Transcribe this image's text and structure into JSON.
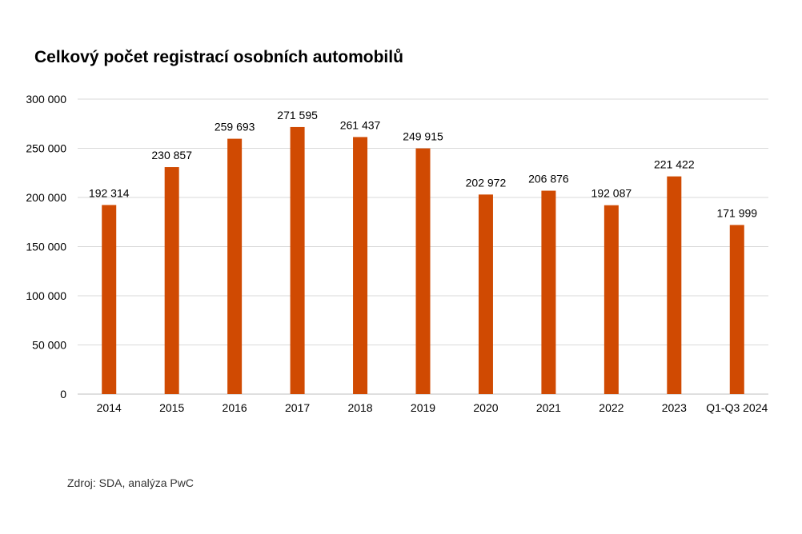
{
  "title": "Celkový počet registrací osobních automobilů",
  "source": "Zdroj: SDA, analýza PwC",
  "chart_data": {
    "type": "bar",
    "title": "Celkový počet registrací osobních automobilů",
    "categories": [
      "2014",
      "2015",
      "2016",
      "2017",
      "2018",
      "2019",
      "2020",
      "2021",
      "2022",
      "2023",
      "Q1-Q3 2024"
    ],
    "values": [
      192314,
      230857,
      259693,
      271595,
      261437,
      249915,
      202972,
      206876,
      192087,
      221422,
      171999
    ],
    "data_labels": [
      "192 314",
      "230 857",
      "259 693",
      "271 595",
      "261 437",
      "249 915",
      "202 972",
      "206 876",
      "192 087",
      "221 422",
      "171 999"
    ],
    "y_ticks": [
      0,
      50000,
      100000,
      150000,
      200000,
      250000,
      300000
    ],
    "y_tick_labels": [
      "0",
      "50 000",
      "100 000",
      "150 000",
      "200 000",
      "250 000",
      "300 000"
    ],
    "ylim": [
      0,
      300000
    ],
    "grid": true,
    "bar_color": "#D04A02",
    "grid_color": "#d9d9d9",
    "legend": "none"
  }
}
